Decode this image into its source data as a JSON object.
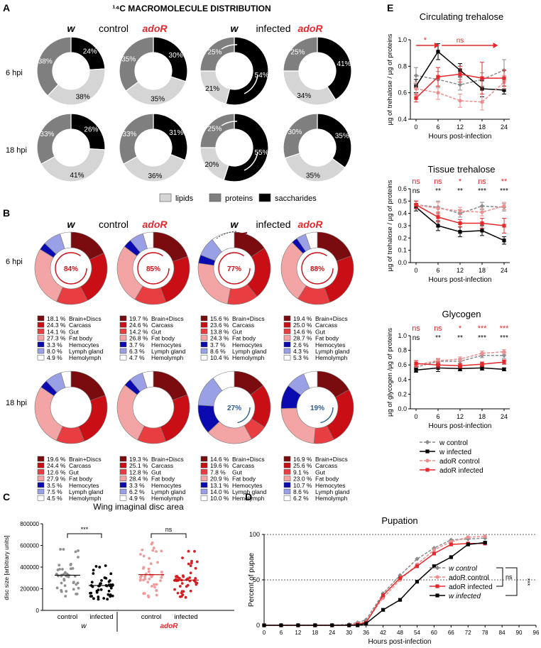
{
  "figure": {
    "panel_letters": [
      "A",
      "B",
      "C",
      "D",
      "E"
    ],
    "title": "¹⁴C MACROMOLECULE  DISTRIBUTION",
    "conditions": [
      "control",
      "infected"
    ],
    "genotype_w": "w",
    "genotype_adoR": "adoR",
    "timepoints": [
      "6 hpi",
      "18 hpi"
    ]
  },
  "colors": {
    "adoR_red": "#e4282b",
    "lipids": "#d5d5d5",
    "proteins": "#7f7f7f",
    "saccharides": "#000000",
    "brain": "#7a0c10",
    "carcass": "#c90f15",
    "gut": "#e83d41",
    "fat": "#f3a4a4",
    "hemocytes": "#0a0ab0",
    "lymph": "#9aa0e6",
    "hemolymph": "#ffffff",
    "w_control": "#8a8a8a",
    "w_infected": "#000000",
    "adoR_control": "#ee8d8d",
    "adoR_infected": "#e4282b"
  },
  "chart_data": [
    {
      "id": "A",
      "type": "pie",
      "style": "donut",
      "title": "14C macromolecule distribution",
      "legend": [
        "lipids",
        "proteins",
        "saccharides"
      ],
      "labels_order": [
        "saccharides",
        "lipids",
        "proteins"
      ],
      "donuts": [
        {
          "row": "6 hpi",
          "group": "w control",
          "values": [
            24,
            38,
            38
          ],
          "labels": [
            "24%",
            "38%",
            "38%"
          ]
        },
        {
          "row": "6 hpi",
          "group": "adoR control",
          "values": [
            30,
            35,
            35
          ],
          "labels": [
            "30%",
            "35%",
            "35%"
          ]
        },
        {
          "row": "6 hpi",
          "group": "w infected",
          "values": [
            54,
            21,
            25
          ],
          "labels": [
            "54%",
            "21%",
            "25%"
          ]
        },
        {
          "row": "6 hpi",
          "group": "adoR infected",
          "values": [
            41,
            34,
            25
          ],
          "labels": [
            "41%",
            "34%",
            "25%"
          ]
        },
        {
          "row": "18 hpi",
          "group": "w control",
          "values": [
            26,
            41,
            33
          ],
          "labels": [
            "26%",
            "41%",
            "33%"
          ]
        },
        {
          "row": "18 hpi",
          "group": "adoR control",
          "values": [
            31,
            36,
            33
          ],
          "labels": [
            "31%",
            "36%",
            "33%"
          ]
        },
        {
          "row": "18 hpi",
          "group": "w infected",
          "values": [
            55,
            20,
            25
          ],
          "labels": [
            "55%",
            "20%",
            "25%"
          ]
        },
        {
          "row": "18 hpi",
          "group": "adoR infected",
          "values": [
            35,
            35,
            30
          ],
          "labels": [
            "35%",
            "35%",
            "30%"
          ]
        }
      ]
    },
    {
      "id": "B",
      "type": "pie",
      "style": "donut",
      "categories": [
        "Brain+Discs",
        "Carcass",
        "Gut",
        "Fat body",
        "Hemocytes",
        "Lymph gland",
        "Hemolymph"
      ],
      "donuts": [
        {
          "row": "6 hpi",
          "group": "w control",
          "values": [
            18.1,
            24.3,
            14.1,
            27.3,
            3.3,
            8.0,
            4.9
          ],
          "center": "84%",
          "legend_values": [
            "18.1 %",
            "24.3 %",
            "14.1 %",
            "27.3 %",
            "3.3 %",
            "8.0 %",
            "4.9 %"
          ]
        },
        {
          "row": "6 hpi",
          "group": "adoR control",
          "values": [
            19.7,
            24.6,
            14.2,
            26.8,
            3.7,
            6.3,
            4.7
          ],
          "center": "85%",
          "legend_values": [
            "19.7 %",
            "24.6 %",
            "14.2 %",
            "26.8 %",
            "3.7 %",
            "6.3 %",
            "4.7 %"
          ]
        },
        {
          "row": "6 hpi",
          "group": "w infected",
          "values": [
            15.6,
            23.6,
            13.8,
            24.3,
            3.7,
            8.6,
            10.4
          ],
          "center": "77%",
          "legend_values": [
            "15.6 %",
            "23.6 %",
            "13.8 %",
            "24.3 %",
            "3.7 %",
            "8.6 %",
            "10.4 %"
          ]
        },
        {
          "row": "6 hpi",
          "group": "adoR infected",
          "values": [
            19.4,
            25.0,
            14.6,
            28.7,
            2.6,
            4.3,
            5.3
          ],
          "center": "88%",
          "legend_values": [
            "19.4 %",
            "25.0 %",
            "14.6 %",
            "28.7 %",
            "2.6 %",
            "4.3 %",
            "5.3 %"
          ]
        },
        {
          "row": "18 hpi",
          "group": "w control",
          "values": [
            19.6,
            24.4,
            12.6,
            27.9,
            3.5,
            7.5,
            4.5
          ],
          "center": "",
          "legend_values": [
            "19.6 %",
            "24.4 %",
            "12.6 %",
            "27.9 %",
            "3.5 %",
            "7.5 %",
            "4.5 %"
          ]
        },
        {
          "row": "18 hpi",
          "group": "adoR control",
          "values": [
            19.3,
            25.1,
            12.8,
            28.4,
            3.3,
            6.2,
            4.9
          ],
          "center": "",
          "legend_values": [
            "19.3 %",
            "25.1 %",
            "12.8 %",
            "28.4 %",
            "3.3 %",
            "6.2 %",
            "4.9 %"
          ]
        },
        {
          "row": "18 hpi",
          "group": "w infected",
          "values": [
            14.6,
            19.6,
            7.8,
            20.9,
            13.1,
            14.0,
            10.0
          ],
          "center": "27%",
          "legend_values": [
            "14.6 %",
            "19.6 %",
            "7.8 %",
            "20.9 %",
            "13.1 %",
            "14.0 %",
            "10.0 %"
          ]
        },
        {
          "row": "18 hpi",
          "group": "adoR infected",
          "values": [
            16.9,
            25.6,
            9.1,
            23.0,
            10.7,
            8.6,
            6.2
          ],
          "center": "19%",
          "legend_values": [
            "16.9 %",
            "25.6 %",
            "9.1 %",
            "23.0 %",
            "10.7 %",
            "8.6 %",
            "6.2 %"
          ]
        }
      ]
    },
    {
      "id": "C",
      "type": "scatter",
      "title": "Wing imaginal disc area",
      "ylabel": "disc size [arbitrary units]",
      "ylim": [
        0,
        800000
      ],
      "yticks": [
        "0",
        "200000",
        "400000",
        "600000",
        "800000"
      ],
      "categories": [
        "control",
        "infected",
        "control",
        "infected"
      ],
      "group_labels": [
        "w",
        "adoR"
      ],
      "medians": [
        325000,
        230000,
        330000,
        280000
      ],
      "ranges": [
        [
          100000,
          600000
        ],
        [
          100000,
          480000
        ],
        [
          100000,
          650000
        ],
        [
          120000,
          580000
        ]
      ],
      "significance": [
        "***",
        "ns"
      ]
    },
    {
      "id": "D",
      "type": "line",
      "title": "Pupation",
      "xlabel": "Hours post-infection",
      "ylabel": "Percent of pupae",
      "xlim": [
        0,
        96
      ],
      "ylim": [
        0,
        100
      ],
      "xticks": [
        "0",
        "6",
        "12",
        "18",
        "24",
        "30",
        "36",
        "42",
        "48",
        "54",
        "60",
        "66",
        "72",
        "78",
        "84",
        "90",
        "96"
      ],
      "yticks": [
        "0",
        "50",
        "100"
      ],
      "x": [
        0,
        6,
        12,
        18,
        24,
        30,
        33,
        36,
        42,
        48,
        54,
        60,
        66,
        72,
        78
      ],
      "series": [
        {
          "name": "w control",
          "values": [
            0,
            0,
            0,
            0,
            0,
            1,
            3,
            6,
            35,
            55,
            73,
            85,
            94,
            95,
            96
          ]
        },
        {
          "name": "adoR control",
          "values": [
            0,
            0,
            0,
            0,
            0,
            0,
            2,
            4,
            30,
            50,
            67,
            83,
            92,
            97,
            98
          ]
        },
        {
          "name": "adoR infected",
          "values": [
            0,
            0,
            0,
            0,
            0,
            0,
            1,
            3,
            33,
            52,
            65,
            79,
            89,
            90,
            90
          ]
        },
        {
          "name": "w infected",
          "values": [
            0,
            0,
            0,
            0,
            0,
            0,
            0,
            2,
            17,
            28,
            48,
            65,
            75,
            89,
            91
          ]
        }
      ],
      "legend": [
        "w control",
        "adoR control",
        "adoR infected",
        "w infected"
      ],
      "significance": [
        "ns",
        "***"
      ]
    },
    {
      "id": "E",
      "type": "line",
      "xlabel": "Hours post-infection",
      "x": [
        0,
        6,
        12,
        18,
        24
      ],
      "xticks": [
        "0",
        "6",
        "12",
        "18",
        "24"
      ],
      "legend": [
        "w control",
        "w infected",
        "adoR control",
        "adoR infected"
      ],
      "subplots": [
        {
          "title": "Circulating trehalose",
          "ylabel": "µg of trehalose / µg of proteins",
          "ylim": [
            0.4,
            1.0
          ],
          "yticks": [
            "0.4",
            "0.6",
            "0.8",
            "1.0"
          ],
          "arrow_labels": [
            "*",
            "ns"
          ],
          "series": [
            {
              "name": "w control",
              "values": [
                0.73,
                0.7,
                0.66,
                0.7,
                0.77
              ],
              "err": [
                0.06,
                0.06,
                0.04,
                0.05,
                0.08
              ]
            },
            {
              "name": "w infected",
              "values": [
                0.65,
                0.91,
                0.77,
                0.63,
                0.62
              ],
              "err": [
                0.05,
                0.06,
                0.05,
                0.06,
                0.03
              ]
            },
            {
              "name": "adoR control",
              "values": [
                0.63,
                0.6,
                0.54,
                0.53,
                0.68
              ],
              "err": [
                0.05,
                0.05,
                0.05,
                0.06,
                0.05
              ]
            },
            {
              "name": "adoR infected",
              "values": [
                0.56,
                0.72,
                0.74,
                0.71,
                0.71
              ],
              "err": [
                0.03,
                0.07,
                0.06,
                0.12,
                0.06
              ]
            }
          ]
        },
        {
          "title": "Tissue trehalose",
          "ylabel": "µg of trehalose / µg of proteins",
          "ylim": [
            0.0,
            0.6
          ],
          "yticks": [
            "0.0",
            "0.1",
            "0.2",
            "0.3",
            "0.4",
            "0.5",
            "0.6"
          ],
          "sig_red": [
            "ns",
            "ns",
            "*",
            "ns",
            "**"
          ],
          "sig_black": [
            "ns",
            "**",
            "**",
            "***",
            "***"
          ],
          "series": [
            {
              "name": "w control",
              "values": [
                0.47,
                0.45,
                0.4,
                0.46,
                0.45
              ],
              "err": [
                0.03,
                0.05,
                0.03,
                0.03,
                0.03
              ]
            },
            {
              "name": "w infected",
              "values": [
                0.45,
                0.3,
                0.25,
                0.26,
                0.18
              ],
              "err": [
                0.03,
                0.04,
                0.04,
                0.04,
                0.03
              ]
            },
            {
              "name": "adoR control",
              "values": [
                0.47,
                0.44,
                0.42,
                0.41,
                0.46
              ],
              "err": [
                0.03,
                0.05,
                0.03,
                0.03,
                0.03
              ]
            },
            {
              "name": "adoR infected",
              "values": [
                0.47,
                0.37,
                0.32,
                0.32,
                0.3
              ],
              "err": [
                0.03,
                0.04,
                0.03,
                0.04,
                0.06
              ]
            }
          ]
        },
        {
          "title": "Glycogen",
          "ylabel": "µg of glycogen /µg of proteins",
          "ylim": [
            0.0,
            1.0
          ],
          "yticks": [
            "0.0",
            "0.2",
            "0.4",
            "0.6",
            "0.8",
            "1.0"
          ],
          "sig_red": [
            "ns",
            "ns",
            "*",
            "***",
            "***"
          ],
          "sig_black": [
            "ns",
            "**",
            "**",
            "***",
            "***"
          ],
          "series": [
            {
              "name": "w control",
              "values": [
                0.57,
                0.65,
                0.65,
                0.73,
                0.73
              ],
              "err": [
                0.03,
                0.03,
                0.03,
                0.03,
                0.04
              ]
            },
            {
              "name": "w infected",
              "values": [
                0.53,
                0.56,
                0.55,
                0.56,
                0.54
              ],
              "err": [
                0.03,
                0.05,
                0.03,
                0.03,
                0.02
              ]
            },
            {
              "name": "adoR control",
              "values": [
                0.6,
                0.66,
                0.68,
                0.76,
                0.78
              ],
              "err": [
                0.03,
                0.03,
                0.03,
                0.03,
                0.03
              ]
            },
            {
              "name": "adoR infected",
              "values": [
                0.62,
                0.6,
                0.59,
                0.61,
                0.64
              ],
              "err": [
                0.04,
                0.04,
                0.03,
                0.03,
                0.03
              ]
            }
          ]
        }
      ]
    }
  ]
}
